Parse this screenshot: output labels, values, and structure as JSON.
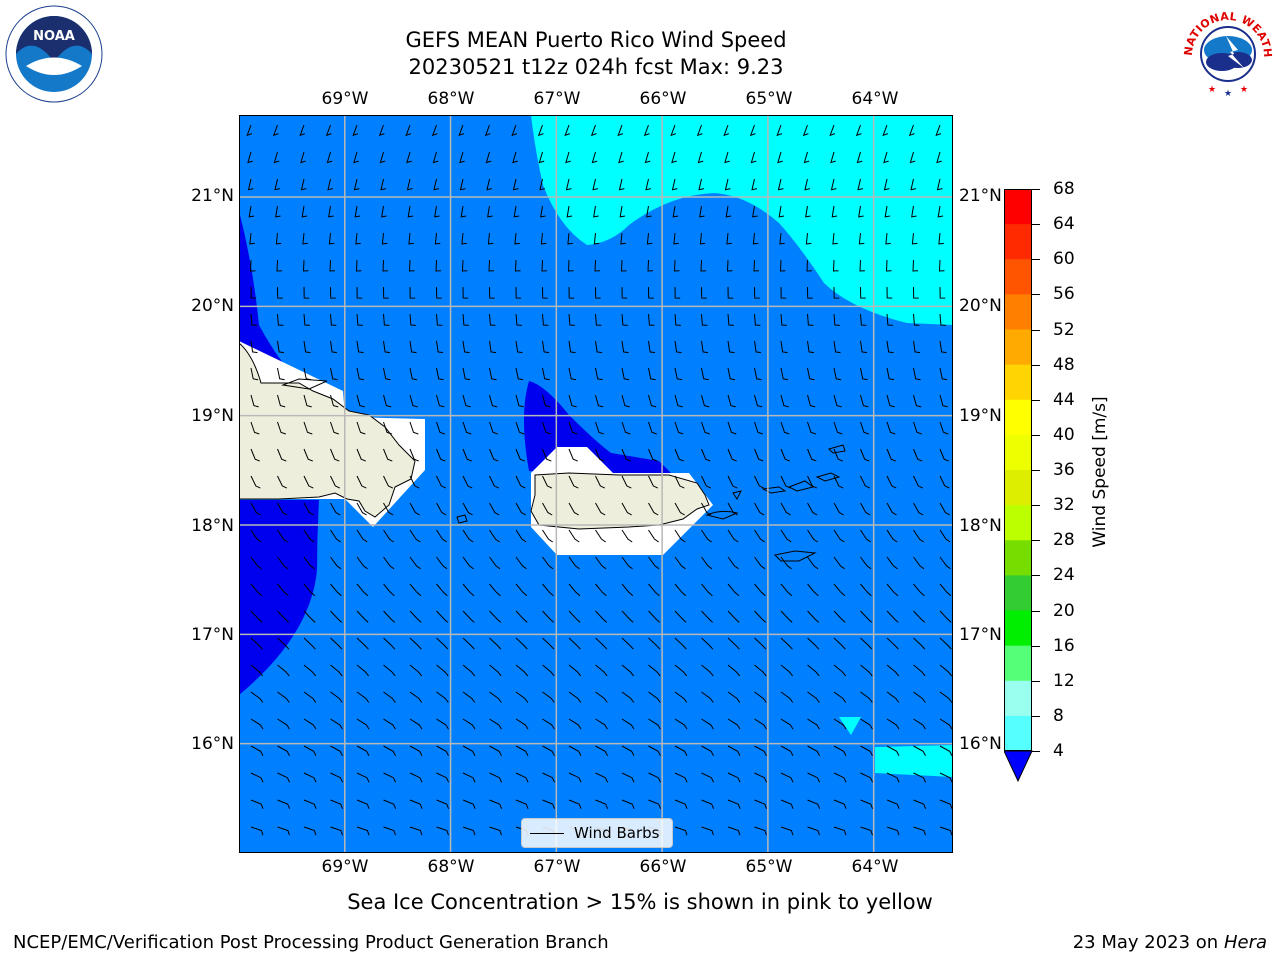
{
  "title": {
    "line1": "GEFS MEAN Puerto Rico Wind Speed",
    "line2": "20230521 t12z 024h fcst   Max: 9.23"
  },
  "logos": {
    "left": "noaa-logo",
    "left_text": "NOAA",
    "right": "nws-logo",
    "right_text": "NATIONAL WEATHER SERVICE"
  },
  "axes": {
    "lon_ticks": [
      "69°W",
      "68°W",
      "67°W",
      "66°W",
      "65°W",
      "64°W"
    ],
    "lat_ticks": [
      "21°N",
      "20°N",
      "19°N",
      "18°N",
      "17°N",
      "16°N"
    ],
    "lon_range": [
      -70,
      -63.25
    ],
    "lat_range": [
      15,
      21.75
    ],
    "grid": true
  },
  "colorbar": {
    "label": "Wind Speed [m/s]",
    "ticks": [
      "68",
      "64",
      "60",
      "56",
      "52",
      "48",
      "44",
      "40",
      "36",
      "32",
      "28",
      "24",
      "20",
      "16",
      "12",
      "8",
      "4"
    ],
    "colors": [
      "#ff0000",
      "#ff2a00",
      "#ff5500",
      "#ff8000",
      "#ffaa00",
      "#ffd400",
      "#ffff00",
      "#eeff00",
      "#ddee00",
      "#bbff00",
      "#77dd00",
      "#33cc33",
      "#00ee00",
      "#55ff77",
      "#99ffee",
      "#55ffff",
      "#00ffff",
      "#0080ff"
    ],
    "extend_color": "#0000ff"
  },
  "fill_colors": {
    "ocean_4_8": "#0080ff",
    "below_4": "#0000ee",
    "band_8_12": "#00ffff",
    "land": "#eeeedc",
    "no_data": "#ffffff"
  },
  "legend": {
    "label": "Wind Barbs"
  },
  "caption": "Sea Ice Concentration > 15% is shown in pink to yellow",
  "footer": {
    "left": "NCEP/EMC/Verification Post Processing Product Generation Branch",
    "right_date": "23 May 2023 on",
    "right_machine": "Hera"
  }
}
